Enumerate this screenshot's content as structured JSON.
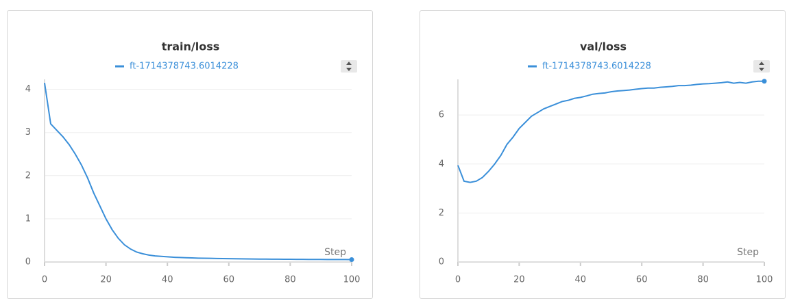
{
  "chart_data": [
    {
      "type": "line",
      "title": "train/loss",
      "xlabel": "Step",
      "x": [
        0,
        2,
        4,
        6,
        8,
        10,
        12,
        14,
        16,
        18,
        20,
        22,
        24,
        26,
        28,
        30,
        32,
        34,
        36,
        38,
        40,
        42,
        44,
        46,
        48,
        50,
        52,
        54,
        56,
        58,
        60,
        62,
        64,
        66,
        68,
        70,
        72,
        74,
        76,
        78,
        80,
        82,
        84,
        86,
        88,
        90,
        92,
        94,
        96,
        98,
        100
      ],
      "series": [
        {
          "name": "ft-1714378743.6014228",
          "color": "#3a8fd9",
          "values": [
            4.15,
            3.2,
            3.05,
            2.9,
            2.72,
            2.5,
            2.25,
            1.95,
            1.6,
            1.3,
            1.0,
            0.75,
            0.55,
            0.4,
            0.3,
            0.23,
            0.19,
            0.16,
            0.14,
            0.13,
            0.12,
            0.11,
            0.105,
            0.1,
            0.095,
            0.09,
            0.088,
            0.085,
            0.082,
            0.08,
            0.078,
            0.076,
            0.074,
            0.072,
            0.07,
            0.068,
            0.067,
            0.066,
            0.065,
            0.064,
            0.063,
            0.062,
            0.061,
            0.06,
            0.06,
            0.059,
            0.058,
            0.058,
            0.057,
            0.057,
            0.056
          ]
        }
      ],
      "xlim": [
        0,
        100
      ],
      "xticks": [
        0,
        20,
        40,
        60,
        80,
        100
      ],
      "ylim": [
        0,
        4.2
      ],
      "yticks": [
        0,
        1,
        2,
        3,
        4
      ],
      "grid": true
    },
    {
      "type": "line",
      "title": "val/loss",
      "xlabel": "Step",
      "x": [
        0,
        2,
        4,
        6,
        8,
        10,
        12,
        14,
        16,
        18,
        20,
        22,
        24,
        26,
        28,
        30,
        32,
        34,
        36,
        38,
        40,
        42,
        44,
        46,
        48,
        50,
        52,
        54,
        56,
        58,
        60,
        62,
        64,
        66,
        68,
        70,
        72,
        74,
        76,
        78,
        80,
        82,
        84,
        86,
        88,
        90,
        92,
        94,
        96,
        98,
        100
      ],
      "series": [
        {
          "name": "ft-1714378743.6014228",
          "color": "#3a8fd9",
          "values": [
            3.95,
            3.3,
            3.25,
            3.3,
            3.45,
            3.7,
            4.0,
            4.35,
            4.8,
            5.1,
            5.45,
            5.7,
            5.95,
            6.1,
            6.25,
            6.35,
            6.45,
            6.55,
            6.6,
            6.68,
            6.72,
            6.78,
            6.85,
            6.88,
            6.9,
            6.95,
            6.98,
            7.0,
            7.02,
            7.05,
            7.08,
            7.1,
            7.1,
            7.13,
            7.15,
            7.17,
            7.2,
            7.2,
            7.22,
            7.25,
            7.27,
            7.28,
            7.3,
            7.32,
            7.35,
            7.3,
            7.33,
            7.3,
            7.35,
            7.38,
            7.38
          ]
        }
      ],
      "xlim": [
        0,
        100
      ],
      "xticks": [
        0,
        20,
        40,
        60,
        80,
        100
      ],
      "ylim": [
        0,
        7.4
      ],
      "yticks": [
        0,
        2,
        4,
        6
      ],
      "grid": true
    }
  ]
}
